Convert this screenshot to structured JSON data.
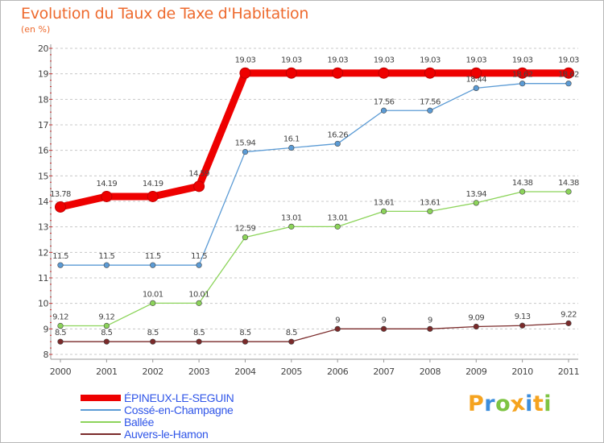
{
  "title": "Evolution du Taux de Taxe d'Habitation",
  "subtitle": "(en %)",
  "logo": {
    "text": "Proxiti",
    "letters": [
      {
        "ch": "P",
        "color": "#f5a31f"
      },
      {
        "ch": "r",
        "color": "#3c8ddc"
      },
      {
        "ch": "o",
        "color": "#7ec443"
      },
      {
        "ch": "x",
        "color": "#f5a31f"
      },
      {
        "ch": "i",
        "color": "#3c8ddc"
      },
      {
        "ch": "t",
        "color": "#f5a31f"
      },
      {
        "ch": "i",
        "color": "#7ec443"
      }
    ]
  },
  "chart_data": {
    "type": "line",
    "title": "Evolution du Taux de Taxe d'Habitation",
    "ylabel": "(en %)",
    "xlabel": "",
    "x": [
      "2000",
      "2001",
      "2002",
      "2003",
      "2004",
      "2005",
      "2006",
      "2007",
      "2008",
      "2009",
      "2010",
      "2011"
    ],
    "ylim": [
      8,
      20
    ],
    "yticks": [
      8,
      9,
      10,
      11,
      12,
      13,
      14,
      15,
      16,
      17,
      18,
      19,
      20
    ],
    "grid": "horizontal dashed",
    "legend": "bottom-left",
    "series": [
      {
        "name": "ÉPINEUX-LE-SEGUIN",
        "color": "#ee0000",
        "width": "thick",
        "values": [
          13.78,
          14.19,
          14.19,
          14.59,
          19.03,
          19.03,
          19.03,
          19.03,
          19.03,
          19.03,
          19.03,
          19.03
        ],
        "labels": [
          "13.78",
          "14.19",
          "14.19",
          "14.59",
          "19.03",
          "19.03",
          "19.03",
          "19.03",
          "19.03",
          "19.03",
          "19.03",
          "19.03"
        ]
      },
      {
        "name": "Cossé-en-Champagne",
        "color": "#5b9bd5",
        "width": "thin",
        "values": [
          11.5,
          11.5,
          11.5,
          11.5,
          15.94,
          16.1,
          16.26,
          17.56,
          17.56,
          18.44,
          18.62,
          18.62
        ],
        "labels": [
          "11.5",
          "11.5",
          "11.5",
          "11.5",
          "15.94",
          "16.1",
          "16.26",
          "17.56",
          "17.56",
          "18.44",
          "18.62",
          "18.62"
        ]
      },
      {
        "name": "Ballée",
        "color": "#8cd45a",
        "width": "thin",
        "values": [
          9.12,
          9.12,
          10.01,
          10.01,
          12.59,
          13.01,
          13.01,
          13.61,
          13.61,
          13.94,
          14.38,
          14.38
        ],
        "labels": [
          "9.12",
          "9.12",
          "10.01",
          "10.01",
          "12.59",
          "13.01",
          "13.01",
          "13.61",
          "13.61",
          "13.94",
          "14.38",
          "14.38"
        ]
      },
      {
        "name": "Auvers-le-Hamon",
        "color": "#7a2a2a",
        "width": "thin",
        "values": [
          8.5,
          8.5,
          8.5,
          8.5,
          8.5,
          8.5,
          9,
          9,
          9,
          9.09,
          9.13,
          9.22
        ],
        "labels": [
          "8.5",
          "8.5",
          "8.5",
          "8.5",
          "8.5",
          "8.5",
          "9",
          "9",
          "9",
          "9.09",
          "9.13",
          "9.22"
        ]
      }
    ]
  }
}
